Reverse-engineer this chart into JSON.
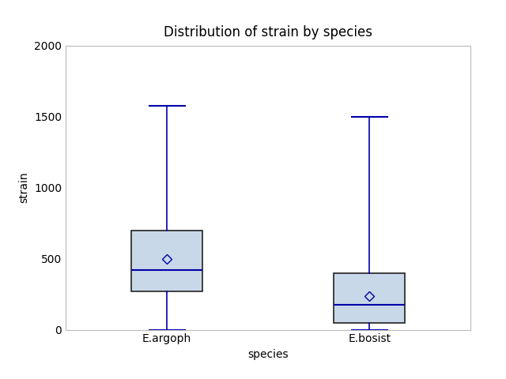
{
  "title": "Distribution of strain by species",
  "xlabel": "species",
  "ylabel": "strain",
  "categories": [
    "E.argoph",
    "E.bosist"
  ],
  "boxes": [
    {
      "label": "E.argoph",
      "whislo": 0,
      "q1": 270,
      "med": 420,
      "q3": 700,
      "whishi": 1575,
      "mean": 500
    },
    {
      "label": "E.bosist",
      "whislo": 0,
      "q1": 50,
      "med": 175,
      "q3": 400,
      "whishi": 1500,
      "mean": 235
    }
  ],
  "ylim": [
    0,
    2000
  ],
  "yticks": [
    0,
    500,
    1000,
    1500,
    2000
  ],
  "box_facecolor": "#c8d8e8",
  "box_edgecolor": "#222222",
  "median_color": "#0000aa",
  "whisker_color": "#0000aa",
  "cap_color": "#0000aa",
  "mean_marker_color": "#0000aa",
  "mean_marker_facecolor": "none",
  "background_color": "#ffffff",
  "plot_area_bg": "#ffffff",
  "border_color": "#bbbbbb",
  "title_fontsize": 12,
  "label_fontsize": 10,
  "tick_fontsize": 10,
  "box_width": 0.35,
  "positions": [
    1,
    2
  ],
  "xlim": [
    0.5,
    2.5
  ]
}
